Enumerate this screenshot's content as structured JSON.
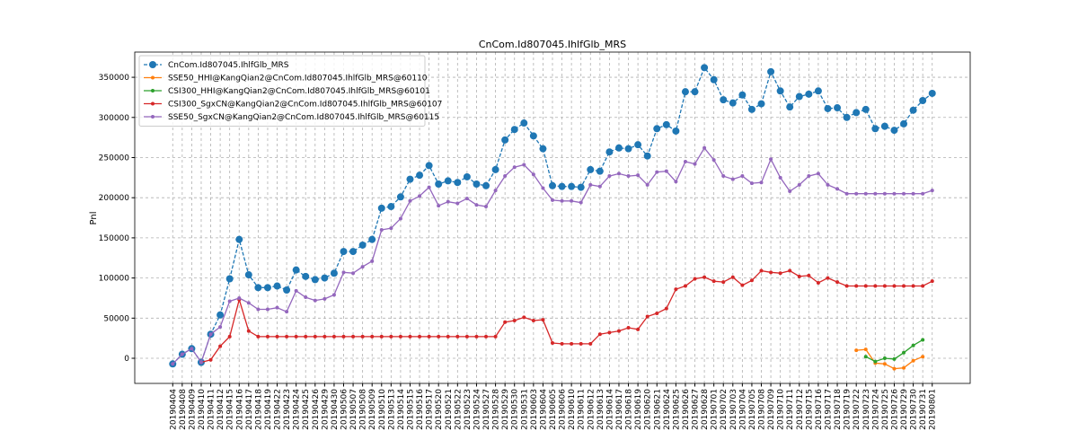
{
  "chart_data": {
    "type": "line",
    "title": "CnCom.Id807045.IhlfGlb_MRS",
    "y_label": "Pnl",
    "categories": [
      "20190404",
      "20190408",
      "20190409",
      "20190410",
      "20190411",
      "20190412",
      "20190415",
      "20190416",
      "20190417",
      "20190418",
      "20190419",
      "20190422",
      "20190423",
      "20190424",
      "20190425",
      "20190426",
      "20190429",
      "20190430",
      "20190506",
      "20190507",
      "20190508",
      "20190509",
      "20190510",
      "20190513",
      "20190514",
      "20190515",
      "20190516",
      "20190517",
      "20190520",
      "20190521",
      "20190522",
      "20190523",
      "20190524",
      "20190527",
      "20190528",
      "20190529",
      "20190530",
      "20190531",
      "20190603",
      "20190604",
      "20190605",
      "20190606",
      "20190610",
      "20190611",
      "20190612",
      "20190613",
      "20190614",
      "20190617",
      "20190618",
      "20190619",
      "20190620",
      "20190621",
      "20190624",
      "20190625",
      "20190626",
      "20190627",
      "20190628",
      "20190701",
      "20190702",
      "20190703",
      "20190704",
      "20190705",
      "20190708",
      "20190709",
      "20190710",
      "20190711",
      "20190712",
      "20190715",
      "20190716",
      "20190717",
      "20190718",
      "20190719",
      "20190722",
      "20190723",
      "20190724",
      "20190725",
      "20190726",
      "20190729",
      "20190730",
      "20190731",
      "20190801"
    ],
    "series": [
      {
        "name": "CnCom.Id807045.IhlfGlb_MRS",
        "color": "#1f77b4",
        "dashed": true,
        "marker_size": 4,
        "values": [
          -7000,
          5000,
          12000,
          -5000,
          30000,
          54000,
          99000,
          148000,
          104000,
          88000,
          88000,
          90000,
          85000,
          110000,
          102000,
          98000,
          100000,
          106000,
          133000,
          133000,
          141000,
          148000,
          187000,
          189000,
          201000,
          223000,
          228000,
          240000,
          217000,
          221000,
          219000,
          226000,
          217000,
          215000,
          235000,
          272000,
          285000,
          293000,
          277000,
          261000,
          215000,
          214000,
          214000,
          213000,
          235000,
          233000,
          257000,
          262000,
          261000,
          266000,
          252000,
          286000,
          291000,
          283000,
          332000,
          332000,
          362000,
          347000,
          322000,
          318000,
          328000,
          310000,
          317000,
          357000,
          333000,
          313000,
          326000,
          329000,
          333000,
          311000,
          312000,
          300000,
          306000,
          310000,
          286000,
          289000,
          284000,
          292000,
          309000,
          321000,
          330000
        ]
      },
      {
        "name": "SSE50_HHI@KangQian2@CnCom.Id807045.IhlfGlb_MRS@60110",
        "color": "#ff7f0e",
        "dashed": false,
        "marker_size": 2,
        "values": [
          null,
          null,
          null,
          null,
          null,
          null,
          null,
          null,
          null,
          null,
          null,
          null,
          null,
          null,
          null,
          null,
          null,
          null,
          null,
          null,
          null,
          null,
          null,
          null,
          null,
          null,
          null,
          null,
          null,
          null,
          null,
          null,
          null,
          null,
          null,
          null,
          null,
          null,
          null,
          null,
          null,
          null,
          null,
          null,
          null,
          null,
          null,
          null,
          null,
          null,
          null,
          null,
          null,
          null,
          null,
          null,
          null,
          null,
          null,
          null,
          null,
          null,
          null,
          null,
          null,
          null,
          null,
          null,
          null,
          null,
          null,
          null,
          10000,
          11000,
          -6000,
          -7000,
          -13000,
          -12000,
          -3000,
          2000,
          null
        ]
      },
      {
        "name": "CSI300_HHI@KangQian2@CnCom.Id807045.IhlfGlb_MRS@60101",
        "color": "#2ca02c",
        "dashed": false,
        "marker_size": 2,
        "values": [
          null,
          null,
          null,
          null,
          null,
          null,
          null,
          null,
          null,
          null,
          null,
          null,
          null,
          null,
          null,
          null,
          null,
          null,
          null,
          null,
          null,
          null,
          null,
          null,
          null,
          null,
          null,
          null,
          null,
          null,
          null,
          null,
          null,
          null,
          null,
          null,
          null,
          null,
          null,
          null,
          null,
          null,
          null,
          null,
          null,
          null,
          null,
          null,
          null,
          null,
          null,
          null,
          null,
          null,
          null,
          null,
          null,
          null,
          null,
          null,
          null,
          null,
          null,
          null,
          null,
          null,
          null,
          null,
          null,
          null,
          null,
          null,
          null,
          2000,
          -4000,
          0,
          -1000,
          7000,
          16000,
          23000,
          null
        ]
      },
      {
        "name": "CSI300_SgxCN@KangQian2@CnCom.Id807045.IhlfGlb_MRS@60107",
        "color": "#d62728",
        "dashed": false,
        "marker_size": 2,
        "values": [
          null,
          null,
          null,
          -5000,
          -2000,
          15000,
          27000,
          73000,
          34000,
          27000,
          27000,
          27000,
          27000,
          27000,
          27000,
          27000,
          27000,
          27000,
          27000,
          27000,
          27000,
          27000,
          27000,
          27000,
          27000,
          27000,
          27000,
          27000,
          27000,
          27000,
          27000,
          27000,
          27000,
          27000,
          27000,
          45000,
          47000,
          51000,
          47000,
          48000,
          19000,
          18000,
          18000,
          18000,
          18000,
          30000,
          32000,
          34000,
          38000,
          36000,
          52000,
          56000,
          62000,
          86000,
          90000,
          99000,
          101000,
          96000,
          95000,
          101000,
          91000,
          97000,
          109000,
          107000,
          106000,
          109000,
          102000,
          103000,
          94000,
          100000,
          95000,
          90000,
          90000,
          90000,
          90000,
          90000,
          90000,
          90000,
          90000,
          90000,
          96000
        ]
      },
      {
        "name": "SSE50_SgxCN@KangQian2@CnCom.Id807045.IhlfGlb_MRS@60115",
        "color": "#9467bd",
        "dashed": false,
        "marker_size": 2,
        "values": [
          -7000,
          5000,
          12000,
          -5000,
          30000,
          39000,
          71000,
          75000,
          69000,
          61000,
          61000,
          63000,
          58000,
          84000,
          76000,
          72000,
          74000,
          79000,
          107000,
          106000,
          114000,
          121000,
          160000,
          162000,
          174000,
          196000,
          202000,
          213000,
          190000,
          195000,
          193000,
          199000,
          191000,
          189000,
          209000,
          227000,
          238000,
          241000,
          229000,
          212000,
          197000,
          196000,
          196000,
          194000,
          216000,
          214000,
          227000,
          230000,
          227000,
          228000,
          216000,
          232000,
          233000,
          220000,
          245000,
          242000,
          262000,
          247000,
          227000,
          223000,
          227000,
          218000,
          219000,
          248000,
          225000,
          208000,
          216000,
          227000,
          230000,
          216000,
          211000,
          205000,
          205000,
          205000,
          205000,
          205000,
          205000,
          205000,
          205000,
          205000,
          209000
        ]
      }
    ],
    "ylim": [
      -31300,
      381400
    ],
    "yticks": [
      0,
      50000,
      100000,
      150000,
      200000,
      250000,
      300000,
      350000
    ],
    "grid": true,
    "legend": "upper-left"
  }
}
